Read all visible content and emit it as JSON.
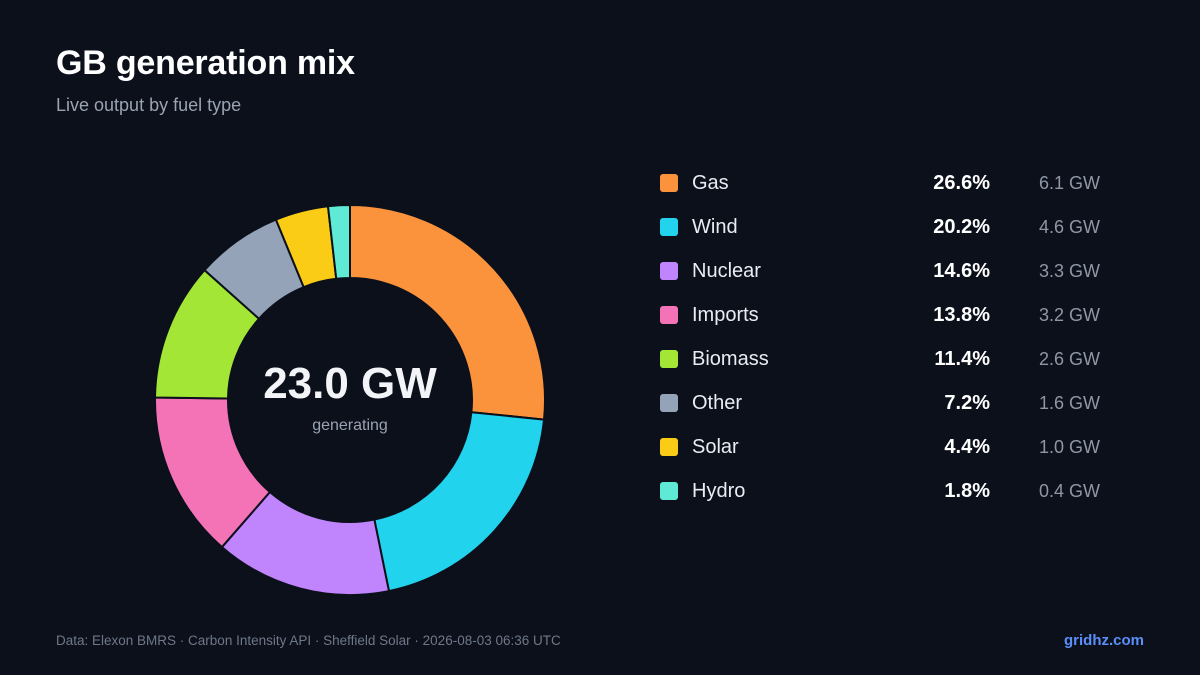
{
  "title": "GB generation mix",
  "subtitle": "Live output by fuel type",
  "center": {
    "value": "23.0 GW",
    "label": "generating"
  },
  "footer": {
    "source": "Data: Elexon BMRS · Carbon Intensity API · Sheffield Solar · 2026-08-03 06:36 UTC",
    "brand": "gridhz.com"
  },
  "chart_data": {
    "type": "pie",
    "donut": true,
    "legend_position": "right",
    "slices": [
      {
        "name": "Gas",
        "pct": 26.6,
        "pct_label": "26.6%",
        "gw": 6.1,
        "gw_label": "6.1 GW",
        "color": "#fb923c"
      },
      {
        "name": "Wind",
        "pct": 20.2,
        "pct_label": "20.2%",
        "gw": 4.6,
        "gw_label": "4.6 GW",
        "color": "#22d3ee"
      },
      {
        "name": "Nuclear",
        "pct": 14.6,
        "pct_label": "14.6%",
        "gw": 3.3,
        "gw_label": "3.3 GW",
        "color": "#c084fc"
      },
      {
        "name": "Imports",
        "pct": 13.8,
        "pct_label": "13.8%",
        "gw": 3.2,
        "gw_label": "3.2 GW",
        "color": "#f472b6"
      },
      {
        "name": "Biomass",
        "pct": 11.4,
        "pct_label": "11.4%",
        "gw": 2.6,
        "gw_label": "2.6 GW",
        "color": "#a3e635"
      },
      {
        "name": "Other",
        "pct": 7.2,
        "pct_label": "7.2%",
        "gw": 1.6,
        "gw_label": "1.6 GW",
        "color": "#94a3b8"
      },
      {
        "name": "Solar",
        "pct": 4.4,
        "pct_label": "4.4%",
        "gw": 1.0,
        "gw_label": "1.0 GW",
        "color": "#facc15"
      },
      {
        "name": "Hydro",
        "pct": 1.8,
        "pct_label": "1.8%",
        "gw": 0.4,
        "gw_label": "0.4 GW",
        "color": "#5eead4"
      }
    ]
  }
}
